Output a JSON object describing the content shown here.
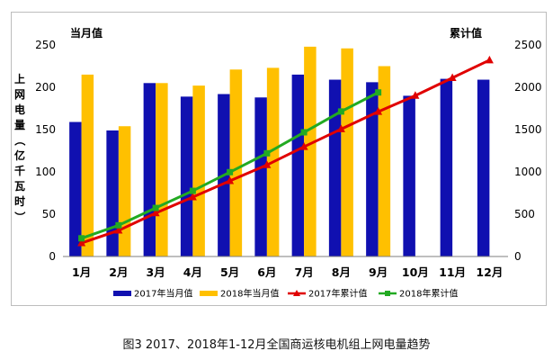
{
  "caption": "图3  2017、2018年1-12月全国商运核电机组上网电量趋势",
  "chart_data": {
    "type": "bar",
    "categories": [
      "1月",
      "2月",
      "3月",
      "4月",
      "5月",
      "6月",
      "7月",
      "8月",
      "9月",
      "10月",
      "11月",
      "12月"
    ],
    "series": [
      {
        "name": "2017年当月值",
        "kind": "bar",
        "axis": "left",
        "color": "#1010b0",
        "values": [
          159,
          149,
          205,
          189,
          192,
          188,
          215,
          209,
          206,
          190,
          210,
          209
        ]
      },
      {
        "name": "2018年当月值",
        "kind": "bar",
        "axis": "left",
        "color": "#ffc000",
        "values": [
          215,
          154,
          205,
          202,
          221,
          223,
          248,
          246,
          225,
          null,
          null,
          null
        ]
      },
      {
        "name": "2017年累计值",
        "kind": "line",
        "axis": "right",
        "color": "#e00000",
        "marker": "triangle",
        "values": [
          159,
          308,
          513,
          702,
          894,
          1082,
          1297,
          1506,
          1712,
          1902,
          2112,
          2321
        ]
      },
      {
        "name": "2018年累计值",
        "kind": "line",
        "axis": "right",
        "color": "#22aa22",
        "marker": "square",
        "values": [
          215,
          369,
          574,
          776,
          997,
          1220,
          1468,
          1714,
          1939,
          null,
          null,
          null
        ]
      }
    ],
    "left_axis": {
      "title": "上网电量（亿千瓦时）",
      "top_label": "当月值",
      "ylim": [
        0,
        250
      ],
      "ticks": [
        0,
        50,
        100,
        150,
        200,
        250
      ]
    },
    "right_axis": {
      "top_label": "累计值",
      "ylim": [
        0,
        2500
      ],
      "ticks": [
        0,
        500,
        1000,
        1500,
        2000,
        2500
      ]
    },
    "legend_position": "bottom",
    "grid": false
  }
}
